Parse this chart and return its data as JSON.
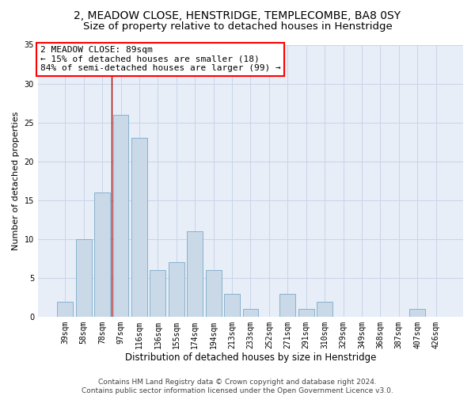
{
  "title1": "2, MEADOW CLOSE, HENSTRIDGE, TEMPLECOMBE, BA8 0SY",
  "title2": "Size of property relative to detached houses in Henstridge",
  "xlabel": "Distribution of detached houses by size in Henstridge",
  "ylabel": "Number of detached properties",
  "bar_color": "#c9d9e8",
  "bar_edge_color": "#7aaac8",
  "categories": [
    "39sqm",
    "58sqm",
    "78sqm",
    "97sqm",
    "116sqm",
    "136sqm",
    "155sqm",
    "174sqm",
    "194sqm",
    "213sqm",
    "233sqm",
    "252sqm",
    "271sqm",
    "291sqm",
    "310sqm",
    "329sqm",
    "349sqm",
    "368sqm",
    "387sqm",
    "407sqm",
    "426sqm"
  ],
  "values": [
    2,
    10,
    16,
    26,
    23,
    6,
    7,
    11,
    6,
    3,
    1,
    0,
    3,
    1,
    2,
    0,
    0,
    0,
    0,
    1,
    0
  ],
  "annotation_text": "2 MEADOW CLOSE: 89sqm\n← 15% of detached houses are smaller (18)\n84% of semi-detached houses are larger (99) →",
  "annotation_box_color": "white",
  "annotation_box_edge_color": "red",
  "vline_x": 2.5,
  "vline_color": "#aa0000",
  "ylim": [
    0,
    35
  ],
  "yticks": [
    0,
    5,
    10,
    15,
    20,
    25,
    30,
    35
  ],
  "grid_color": "#c8d4e8",
  "bg_color": "#e8eef8",
  "footer": "Contains HM Land Registry data © Crown copyright and database right 2024.\nContains public sector information licensed under the Open Government Licence v3.0.",
  "title1_fontsize": 10,
  "title2_fontsize": 9.5,
  "xlabel_fontsize": 8.5,
  "ylabel_fontsize": 8,
  "tick_fontsize": 7,
  "annotation_fontsize": 8,
  "footer_fontsize": 6.5
}
